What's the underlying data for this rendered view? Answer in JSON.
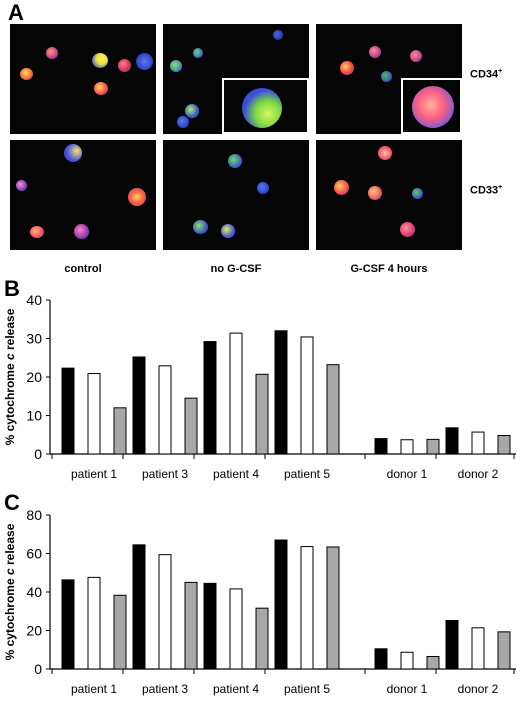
{
  "panel_labels": {
    "a": "A",
    "b": "B",
    "c": "C"
  },
  "micrographs": {
    "rows": [
      {
        "marker": "CD34",
        "marker_sup": "+"
      },
      {
        "marker": "CD33",
        "marker_sup": "+"
      }
    ],
    "columns": [
      "control",
      "no G-CSF",
      "G-CSF 4 hours"
    ]
  },
  "colors": {
    "black_bar": "#000000",
    "white_bar": "#ffffff",
    "gray_bar": "#a8a8a8"
  },
  "chart_data": [
    {
      "type": "bar",
      "panel": "B",
      "ylabel_prefix": "% cytochrome ",
      "ylabel_italic": "c",
      "ylabel_suffix": " release",
      "ylim": [
        0,
        40
      ],
      "yticks": [
        0,
        10,
        20,
        30,
        40
      ],
      "categories": [
        "patient 1",
        "patient 3",
        "patient 4",
        "patient 5",
        "donor 1",
        "donor 2"
      ],
      "series": [
        {
          "values": [
            22.3,
            25.2,
            29.2,
            32.0,
            4.0,
            6.8
          ]
        },
        {
          "values": [
            20.9,
            22.9,
            31.4,
            30.4,
            3.7,
            5.7
          ]
        },
        {
          "values": [
            12.0,
            14.5,
            20.7,
            23.2,
            3.8,
            4.8
          ]
        }
      ]
    },
    {
      "type": "bar",
      "panel": "C",
      "ylabel_prefix": "% cytochrome ",
      "ylabel_italic": "c",
      "ylabel_suffix": " release",
      "ylim": [
        0,
        80
      ],
      "yticks": [
        0,
        20,
        40,
        60,
        80
      ],
      "categories": [
        "patient 1",
        "patient 3",
        "patient 4",
        "patient 5",
        "donor 1",
        "donor 2"
      ],
      "series": [
        {
          "values": [
            46.3,
            64.5,
            44.5,
            67.0,
            10.5,
            25.2
          ]
        },
        {
          "values": [
            47.6,
            59.4,
            41.6,
            63.6,
            8.7,
            21.4
          ]
        },
        {
          "values": [
            38.3,
            45.0,
            31.6,
            63.4,
            6.5,
            19.3
          ]
        }
      ]
    }
  ]
}
